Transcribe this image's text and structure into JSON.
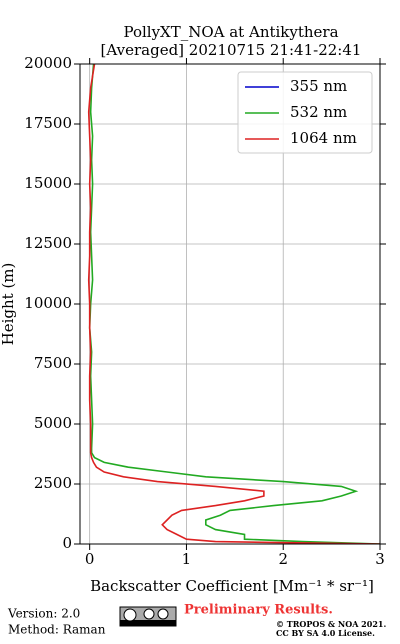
{
  "chart_data": {
    "type": "line",
    "title": "PollyXT_NOA at Antikythera",
    "subtitle": "[Averaged] 20210715 21:41-22:41",
    "xlabel": "Backscatter Coefficient [Mm⁻¹ * sr⁻¹]",
    "ylabel": "Height (m)",
    "x": [
      0,
      100,
      200,
      400,
      600,
      800,
      1000,
      1200,
      1400,
      1600,
      1800,
      2000,
      2200,
      2400,
      2600,
      2800,
      3000,
      3200,
      3400,
      3600,
      3800,
      4000,
      5000,
      6000,
      7000,
      8000,
      9000,
      10000,
      11000,
      12000,
      13000,
      14000,
      15000,
      16000,
      17000,
      18000,
      19000,
      20000
    ],
    "series": [
      {
        "name": "355 nm",
        "color": "#0000cc",
        "values": [
          null,
          null,
          null,
          null,
          null,
          null,
          null,
          null,
          null,
          null,
          null,
          null,
          null,
          null,
          null,
          null,
          null,
          null,
          null,
          null,
          null,
          null,
          null,
          null,
          null,
          null,
          null,
          null,
          null,
          null,
          null,
          null,
          null,
          null,
          null,
          null,
          null,
          null
        ]
      },
      {
        "name": "532 nm",
        "color": "#22aa22",
        "values": [
          3,
          2.2,
          1.6,
          1.6,
          1.3,
          1.2,
          1.2,
          1.35,
          1.45,
          1.9,
          2.4,
          2.6,
          2.75,
          2.6,
          2.0,
          1.2,
          0.8,
          0.4,
          0.15,
          0.05,
          0.02,
          0.02,
          0.03,
          0.02,
          0.01,
          0.02,
          0.0,
          0.01,
          0.03,
          0.02,
          0.01,
          0.02,
          0.03,
          0.02,
          0.03,
          0.01,
          0.02,
          0.04
        ]
      },
      {
        "name": "1064 nm",
        "color": "#dd2222",
        "values": [
          3,
          1.3,
          1.0,
          0.9,
          0.8,
          0.75,
          0.8,
          0.85,
          0.95,
          1.3,
          1.6,
          1.8,
          1.8,
          1.3,
          0.7,
          0.35,
          0.15,
          0.07,
          0.04,
          0.02,
          0.01,
          0.01,
          0.01,
          0.0,
          0.0,
          0.01,
          0.0,
          0.0,
          -0.01,
          0.0,
          0.0,
          0.01,
          0.0,
          0.01,
          0.0,
          -0.01,
          0.01,
          0.05
        ]
      }
    ],
    "xlim": [
      -0.1,
      3
    ],
    "xticks": [
      0,
      1,
      2,
      3
    ],
    "ylim": [
      0,
      20000
    ],
    "yticks": [
      0,
      2500,
      5000,
      7500,
      10000,
      12500,
      15000,
      17500,
      20000
    ],
    "grid": true,
    "legend": "upper right"
  },
  "footer": {
    "version": "Version: 2.0",
    "method": "Method: Raman",
    "preliminary": "Preliminary Results.",
    "copyright": "© TROPOS & NOA 2021.",
    "license": "CC BY SA 4.0 License."
  }
}
